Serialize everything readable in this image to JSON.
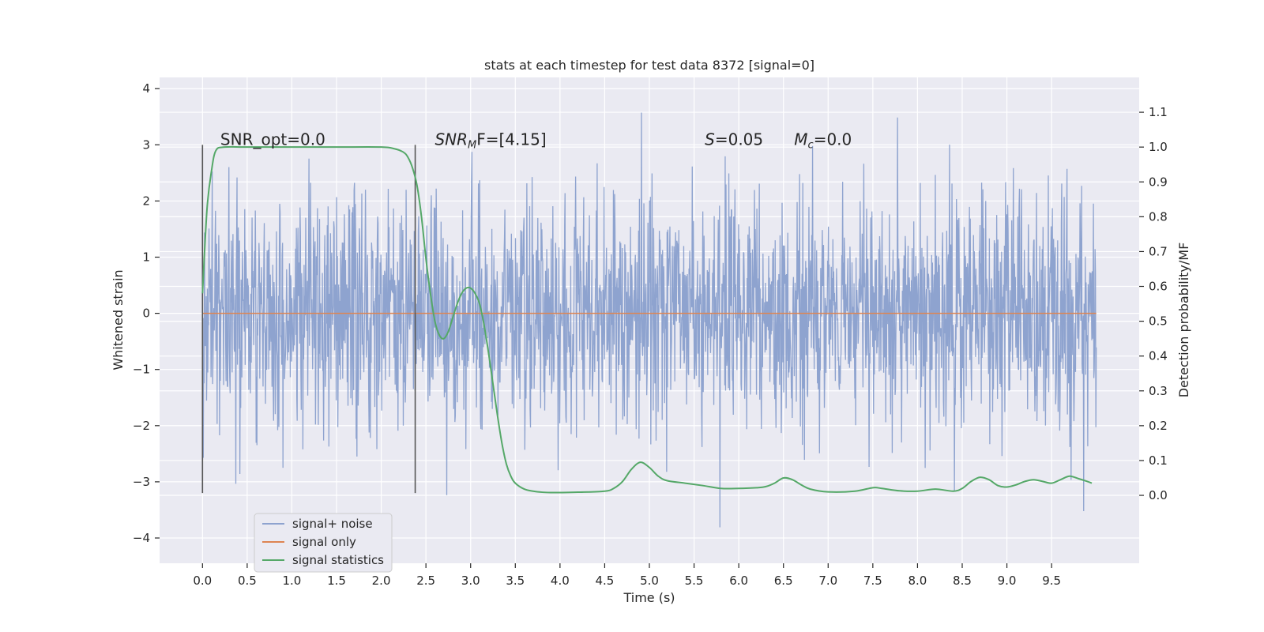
{
  "chart_data": {
    "type": "line",
    "title": "stats at each timestep for test data 8372 [signal=0]",
    "xlabel": "Time (s)",
    "ylabel": "Whitened strain",
    "y2label": "Detection probability/MF",
    "xlim": [
      -0.48,
      10.48
    ],
    "ylim": [
      -4.45,
      4.2
    ],
    "y2lim": [
      -0.195,
      1.2
    ],
    "x_ticks": [
      "0.0",
      "0.5",
      "1.0",
      "1.5",
      "2.0",
      "2.5",
      "3.0",
      "3.5",
      "4.0",
      "4.5",
      "5.0",
      "5.5",
      "6.0",
      "6.5",
      "7.0",
      "7.5",
      "8.0",
      "8.5",
      "9.0",
      "9.5"
    ],
    "y_ticks": [
      "4",
      "3",
      "2",
      "1",
      "0",
      "−1",
      "−2",
      "−3",
      "−4"
    ],
    "y2_ticks": [
      "1.1",
      "1.0",
      "0.9",
      "0.8",
      "0.7",
      "0.6",
      "0.5",
      "0.4",
      "0.3",
      "0.2",
      "0.1",
      "0.0"
    ],
    "grid": true,
    "legend_position": "lower-left",
    "colors": {
      "signal_noise": "#8ea3cf",
      "signal_only": "#dd8452",
      "signal_statistics": "#55a868",
      "background": "#eaeaf2",
      "grid": "#ffffff",
      "vline": "#555555"
    },
    "series": [
      {
        "name": "signal+ noise",
        "description": "noise-like whitened strain, std approx 1.0, peak amplitude about 3.8",
        "x_range": [
          0.0,
          10.0
        ],
        "envelope_min": -4.0,
        "envelope_max": 3.8
      },
      {
        "name": "signal only",
        "x": [
          0.0,
          10.0
        ],
        "values": [
          0.0,
          0.0
        ]
      },
      {
        "name": "signal statistics",
        "axis": "right",
        "x": [
          0.0,
          0.05,
          0.1,
          0.15,
          0.25,
          0.5,
          1.0,
          1.5,
          2.0,
          2.15,
          2.25,
          2.3,
          2.35,
          2.4,
          2.45,
          2.5,
          2.55,
          2.6,
          2.65,
          2.7,
          2.75,
          2.8,
          2.85,
          2.9,
          2.95,
          3.0,
          3.05,
          3.1,
          3.15,
          3.2,
          3.25,
          3.3,
          3.35,
          3.4,
          3.45,
          3.5,
          3.6,
          3.7,
          3.8,
          3.9,
          4.0,
          4.2,
          4.5,
          4.6,
          4.7,
          4.8,
          4.9,
          5.0,
          5.1,
          5.2,
          5.4,
          5.6,
          5.8,
          6.0,
          6.2,
          6.3,
          6.4,
          6.5,
          6.6,
          6.7,
          6.8,
          7.0,
          7.3,
          7.5,
          7.6,
          7.8,
          8.0,
          8.2,
          8.4,
          8.5,
          8.6,
          8.7,
          8.8,
          8.9,
          9.0,
          9.1,
          9.2,
          9.3,
          9.4,
          9.5,
          9.6,
          9.7,
          9.8,
          9.9,
          9.95
        ],
        "values": [
          0.58,
          0.82,
          0.93,
          0.99,
          1.0,
          1.0,
          1.0,
          1.0,
          1.0,
          0.995,
          0.985,
          0.97,
          0.94,
          0.89,
          0.8,
          0.68,
          0.58,
          0.5,
          0.46,
          0.45,
          0.47,
          0.51,
          0.55,
          0.58,
          0.595,
          0.595,
          0.58,
          0.55,
          0.49,
          0.41,
          0.32,
          0.23,
          0.15,
          0.09,
          0.055,
          0.035,
          0.018,
          0.012,
          0.009,
          0.008,
          0.008,
          0.009,
          0.012,
          0.02,
          0.04,
          0.075,
          0.095,
          0.08,
          0.055,
          0.042,
          0.035,
          0.028,
          0.02,
          0.02,
          0.022,
          0.025,
          0.035,
          0.05,
          0.045,
          0.03,
          0.018,
          0.01,
          0.012,
          0.022,
          0.02,
          0.013,
          0.012,
          0.018,
          0.012,
          0.02,
          0.04,
          0.052,
          0.045,
          0.028,
          0.024,
          0.03,
          0.04,
          0.045,
          0.04,
          0.035,
          0.045,
          0.055,
          0.048,
          0.04,
          0.035
        ]
      }
    ],
    "vlines": [
      {
        "x": 0.0,
        "y_from": -3.2,
        "y_to": 3.0
      },
      {
        "x": 2.38,
        "y_from": -3.2,
        "y_to": 3.0
      }
    ],
    "annotations": [
      {
        "text": "SNR_opt=0.0",
        "x": 0.2,
        "y": 3.0
      },
      {
        "prefix": "SNR",
        "sub": "M",
        "suffix": "F=[4.15]",
        "x": 2.6,
        "y": 3.0
      },
      {
        "prefix": "S",
        "suffix": "=0.05",
        "x": 5.62,
        "y": 3.0
      },
      {
        "prefix": "M",
        "sub": "c",
        "suffix": "=0.0",
        "x": 6.62,
        "y": 3.0
      }
    ]
  }
}
